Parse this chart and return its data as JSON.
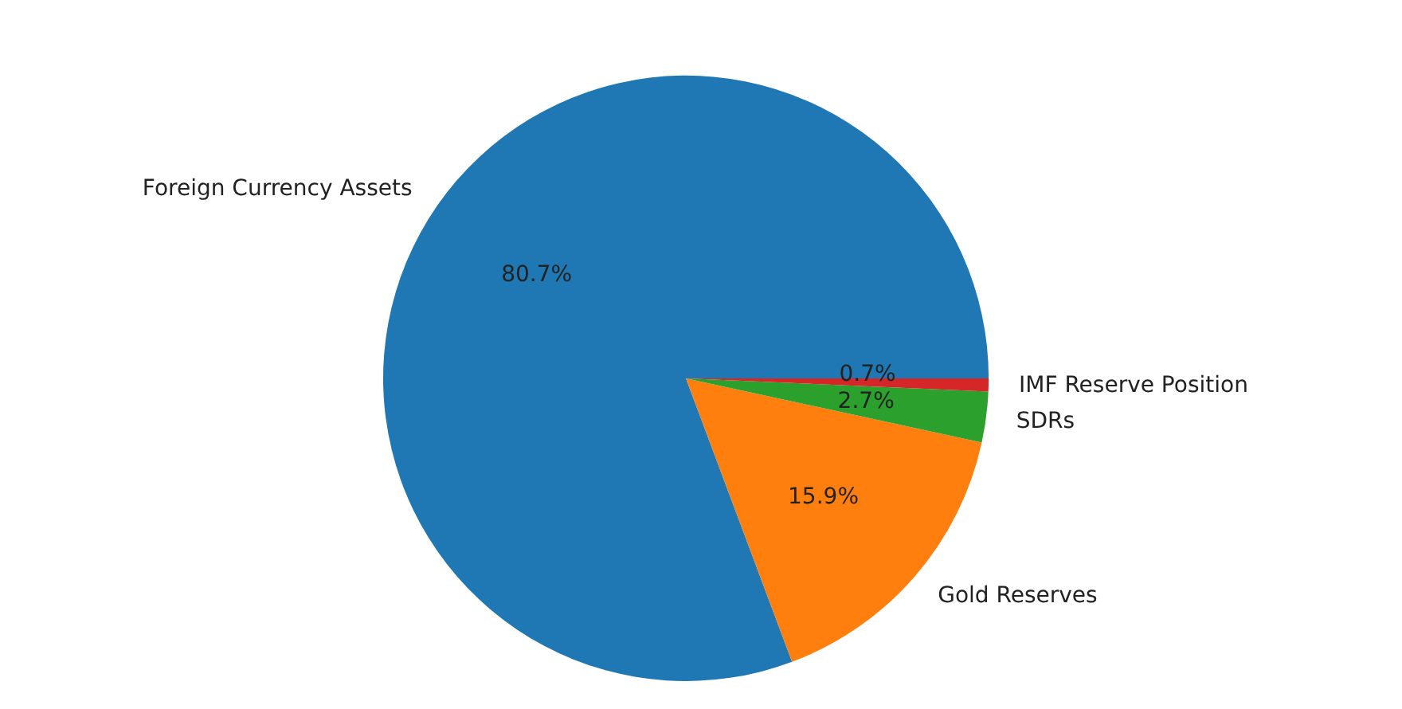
{
  "chart_data": {
    "type": "pie",
    "categories": [
      "Foreign Currency Assets",
      "Gold Reserves",
      "SDRs",
      "IMF Reserve Position"
    ],
    "values": [
      80.7,
      15.9,
      2.7,
      0.7
    ],
    "value_labels": [
      "80.7%",
      "15.9%",
      "2.7%",
      "0.7%"
    ],
    "colors": [
      "#1f77b4",
      "#ff7f0e",
      "#2ca02c",
      "#d62728"
    ]
  }
}
